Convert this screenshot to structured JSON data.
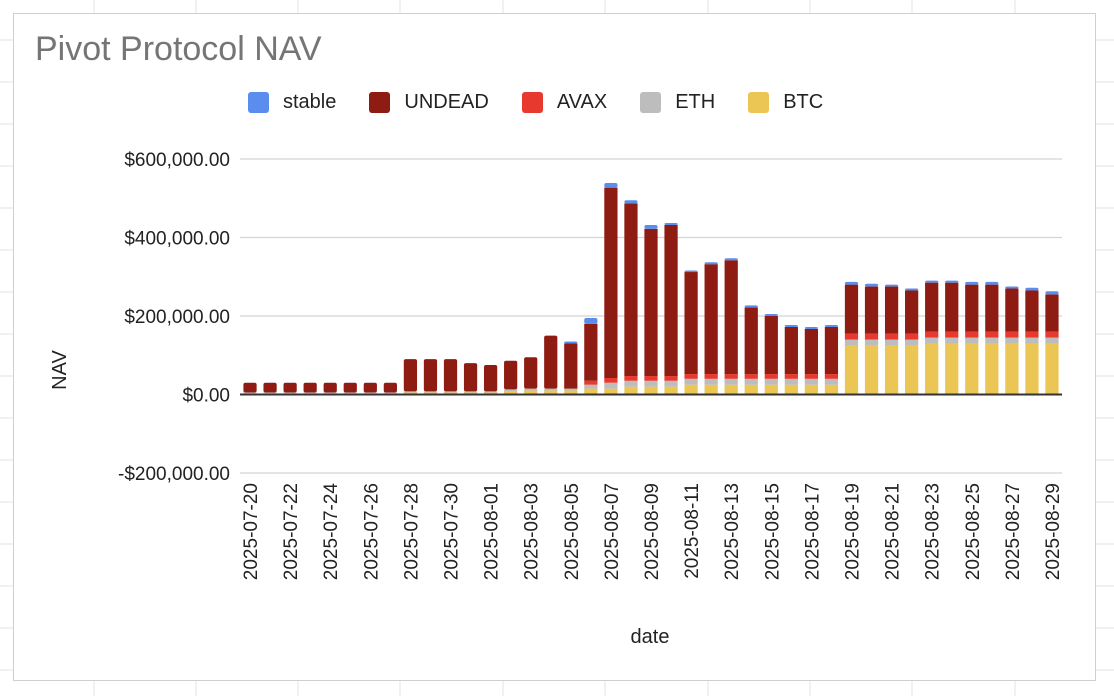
{
  "chart_data": {
    "type": "bar",
    "stacked": true,
    "title": "Pivot Protocol NAV",
    "xlabel": "date",
    "ylabel": "NAV",
    "ylim": [
      -200000,
      600000
    ],
    "yticks": [
      600000,
      400000,
      200000,
      0,
      -200000
    ],
    "ytick_labels": [
      "$600,000.00",
      "$400,000.00",
      "$200,000.00",
      "$0.00",
      "-$200,000.00"
    ],
    "grid": true,
    "legend_position": "top",
    "legend_order": [
      "stable",
      "UNDEAD",
      "AVAX",
      "ETH",
      "BTC"
    ],
    "colors": {
      "stable": "#5b8def",
      "UNDEAD": "#8f1c12",
      "AVAX": "#e8392e",
      "ETH": "#bdbdbd",
      "BTC": "#ecc654"
    },
    "categories": [
      "2025-07-20",
      "2025-07-21",
      "2025-07-22",
      "2025-07-23",
      "2025-07-24",
      "2025-07-25",
      "2025-07-26",
      "2025-07-27",
      "2025-07-28",
      "2025-07-29",
      "2025-07-30",
      "2025-07-31",
      "2025-08-01",
      "2025-08-02",
      "2025-08-03",
      "2025-08-04",
      "2025-08-05",
      "2025-08-06",
      "2025-08-07",
      "2025-08-08",
      "2025-08-09",
      "2025-08-10",
      "2025-08-11",
      "2025-08-12",
      "2025-08-13",
      "2025-08-14",
      "2025-08-15",
      "2025-08-16",
      "2025-08-17",
      "2025-08-18",
      "2025-08-19",
      "2025-08-20",
      "2025-08-21",
      "2025-08-22",
      "2025-08-23",
      "2025-08-24",
      "2025-08-25",
      "2025-08-26",
      "2025-08-27",
      "2025-08-28",
      "2025-08-29"
    ],
    "tick_labels_shown": [
      "2025-07-20",
      "2025-07-22",
      "2025-07-24",
      "2025-07-26",
      "2025-07-28",
      "2025-07-30",
      "2025-08-01",
      "2025-08-03",
      "2025-08-05",
      "2025-08-07",
      "2025-08-09",
      "2025-08-11",
      "2025-08-13",
      "2025-08-15",
      "2025-08-17",
      "2025-08-19",
      "2025-08-21",
      "2025-08-23",
      "2025-08-25",
      "2025-08-27",
      "2025-08-29"
    ],
    "series": [
      {
        "name": "BTC",
        "values": [
          3000,
          3000,
          3000,
          3000,
          3000,
          3000,
          3000,
          3000,
          5000,
          5000,
          5000,
          5000,
          5000,
          8000,
          10000,
          10000,
          10000,
          15000,
          15000,
          20000,
          20000,
          20000,
          25000,
          25000,
          25000,
          25000,
          25000,
          25000,
          25000,
          25000,
          125000,
          125000,
          125000,
          125000,
          130000,
          130000,
          130000,
          130000,
          130000,
          130000,
          130000
        ]
      },
      {
        "name": "ETH",
        "values": [
          2000,
          2000,
          2000,
          2000,
          2000,
          2000,
          2000,
          2000,
          3000,
          3000,
          3000,
          3000,
          3000,
          5000,
          5000,
          5000,
          5000,
          10000,
          15000,
          15000,
          15000,
          15000,
          15000,
          15000,
          15000,
          15000,
          15000,
          15000,
          15000,
          15000,
          15000,
          15000,
          15000,
          15000,
          15000,
          15000,
          15000,
          15000,
          15000,
          15000,
          15000
        ]
      },
      {
        "name": "AVAX",
        "values": [
          0,
          0,
          0,
          0,
          0,
          0,
          0,
          0,
          0,
          0,
          0,
          0,
          0,
          0,
          0,
          0,
          0,
          10000,
          12000,
          12000,
          12000,
          12000,
          12000,
          12000,
          12000,
          12000,
          12000,
          12000,
          12000,
          12000,
          15000,
          15000,
          15000,
          15000,
          15000,
          15000,
          15000,
          15000,
          15000,
          15000,
          15000
        ]
      },
      {
        "name": "UNDEAD",
        "values": [
          25000,
          25000,
          25000,
          25000,
          25000,
          25000,
          25000,
          25000,
          82000,
          82000,
          82000,
          72000,
          67000,
          73000,
          80000,
          135000,
          115000,
          145000,
          485000,
          440000,
          375000,
          385000,
          260000,
          280000,
          290000,
          170000,
          148000,
          120000,
          115000,
          120000,
          125000,
          120000,
          120000,
          110000,
          125000,
          125000,
          120000,
          120000,
          110000,
          105000,
          95000
        ]
      },
      {
        "name": "stable",
        "values": [
          0,
          0,
          0,
          0,
          0,
          0,
          0,
          0,
          0,
          0,
          0,
          0,
          0,
          0,
          0,
          0,
          5000,
          15000,
          12000,
          8000,
          10000,
          5000,
          4000,
          5000,
          5000,
          5000,
          5000,
          5000,
          5000,
          5000,
          7000,
          7000,
          5000,
          5000,
          5000,
          5000,
          7000,
          7000,
          5000,
          7000,
          8000
        ]
      }
    ]
  }
}
